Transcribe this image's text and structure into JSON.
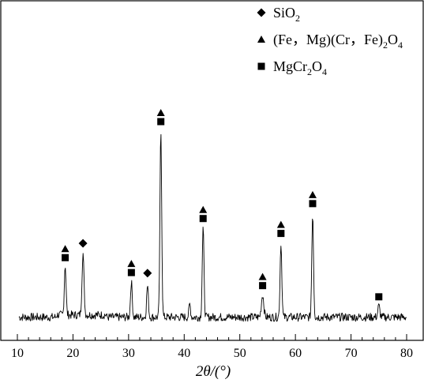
{
  "chart_data": {
    "type": "line",
    "title": "",
    "xlabel": "2θ/(°)",
    "ylabel": "",
    "xlim": [
      10,
      80
    ],
    "x_ticks": [
      "10",
      "20",
      "30",
      "40",
      "50",
      "60",
      "70",
      "80"
    ],
    "grid": false,
    "legend_placement": "top-right",
    "legend": [
      {
        "marker": "diamond",
        "text": "SiO",
        "sub": "2",
        "tail": ""
      },
      {
        "marker": "triangle",
        "text": "(Fe，Mg)(Cr，Fe)",
        "sub": "2",
        "tail": "O",
        "sub2": "4"
      },
      {
        "marker": "square",
        "text": "MgCr",
        "sub": "2",
        "tail": "O",
        "sub2": "4"
      }
    ],
    "peaks": [
      {
        "x": 18.6,
        "height": 0.27,
        "width": 0.22,
        "markers": [
          "triangle",
          "square"
        ]
      },
      {
        "x": 21.8,
        "height": 0.33,
        "width": 0.25,
        "markers": [
          "diamond"
        ]
      },
      {
        "x": 30.5,
        "height": 0.19,
        "width": 0.22,
        "markers": [
          "triangle",
          "square"
        ]
      },
      {
        "x": 33.4,
        "height": 0.17,
        "width": 0.22,
        "markers": [
          "diamond"
        ]
      },
      {
        "x": 35.8,
        "height": 1.0,
        "width": 0.22,
        "markers": [
          "triangle",
          "square"
        ]
      },
      {
        "x": 41.0,
        "height": 0.07,
        "width": 0.2,
        "markers": []
      },
      {
        "x": 43.4,
        "height": 0.48,
        "width": 0.22,
        "markers": [
          "triangle",
          "square"
        ]
      },
      {
        "x": 54.1,
        "height": 0.12,
        "width": 0.3,
        "markers": [
          "triangle",
          "square"
        ]
      },
      {
        "x": 57.4,
        "height": 0.4,
        "width": 0.22,
        "markers": [
          "triangle",
          "square"
        ]
      },
      {
        "x": 63.1,
        "height": 0.56,
        "width": 0.22,
        "markers": [
          "triangle",
          "square"
        ]
      },
      {
        "x": 75.0,
        "height": 0.06,
        "width": 0.25,
        "markers": [
          "square"
        ]
      }
    ],
    "colors": {
      "line": "#000000",
      "background": "#ffffff"
    }
  }
}
